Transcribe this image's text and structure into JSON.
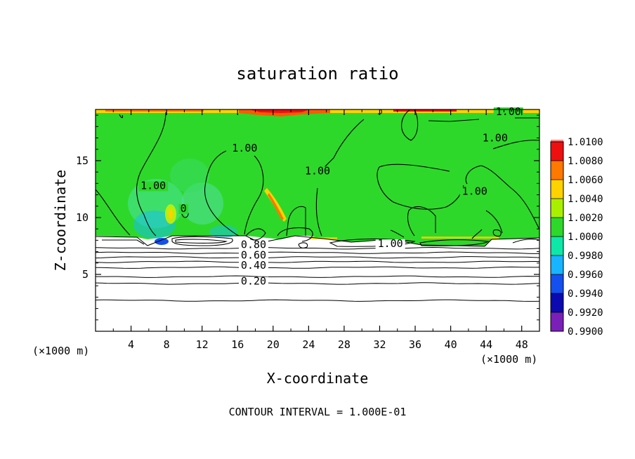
{
  "chart_data": {
    "type": "heatmap",
    "title": "saturation ratio",
    "xlabel": "X-coordinate",
    "ylabel": "Z-coordinate",
    "x_unit_left": "(×1000 m)",
    "x_unit_right": "(×1000 m)",
    "footer": "CONTOUR INTERVAL = 1.000E-01",
    "xlim": [
      0,
      50
    ],
    "ylim": [
      0,
      19.5
    ],
    "xticks": [
      4,
      8,
      12,
      16,
      20,
      24,
      28,
      32,
      36,
      40,
      44,
      48
    ],
    "yticks": [
      5,
      10,
      15
    ],
    "xtick_labels": [
      "4",
      "8",
      "12",
      "16",
      "20",
      "24",
      "28",
      "32",
      "36",
      "40",
      "44",
      "48"
    ],
    "ytick_labels": [
      "5",
      "10",
      "15"
    ],
    "colorbar": {
      "levels": [
        0.99,
        0.992,
        0.994,
        0.996,
        0.998,
        1.0,
        1.002,
        1.004,
        1.006,
        1.008,
        1.01
      ],
      "labels": [
        "0.9900",
        "0.9920",
        "0.9940",
        "0.9960",
        "0.9980",
        "1.0000",
        "1.0020",
        "1.0040",
        "1.0060",
        "1.0080",
        "1.0100"
      ],
      "colors": [
        "#7a1fb8",
        "#0a0ab0",
        "#1450f0",
        "#18b4ff",
        "#0de8a8",
        "#2ed82a",
        "#a8f000",
        "#ffd200",
        "#ff7800",
        "#ee1010",
        "#f49090"
      ]
    },
    "fill_region": {
      "z_min": 8.3,
      "z_max": 19.5,
      "dominant_band": "1.0000"
    },
    "contour_labels": [
      {
        "text": "1.00",
        "x": 16.8,
        "z": 15.8
      },
      {
        "text": "1.00",
        "x": 6.5,
        "z": 12.5
      },
      {
        "text": "0",
        "x": 9.9,
        "z": 10.5
      },
      {
        "text": "1.00",
        "x": 25.0,
        "z": 13.8
      },
      {
        "text": "1.00",
        "x": 42.7,
        "z": 12.0
      },
      {
        "text": "1.00",
        "x": 45.0,
        "z": 16.7
      },
      {
        "text": "1.00",
        "x": 46.5,
        "z": 19.0
      },
      {
        "text": "1.00",
        "x": 33.2,
        "z": 7.4
      },
      {
        "text": "0.80",
        "x": 17.8,
        "z": 7.3
      },
      {
        "text": "0.60",
        "x": 17.8,
        "z": 6.4
      },
      {
        "text": "0.40",
        "x": 17.8,
        "z": 5.5
      },
      {
        "text": "0.20",
        "x": 17.8,
        "z": 4.1
      }
    ],
    "dry_contours_z": [
      2.7,
      4.2,
      4.8,
      5.6,
      6.1,
      6.5,
      6.9,
      7.3
    ]
  }
}
